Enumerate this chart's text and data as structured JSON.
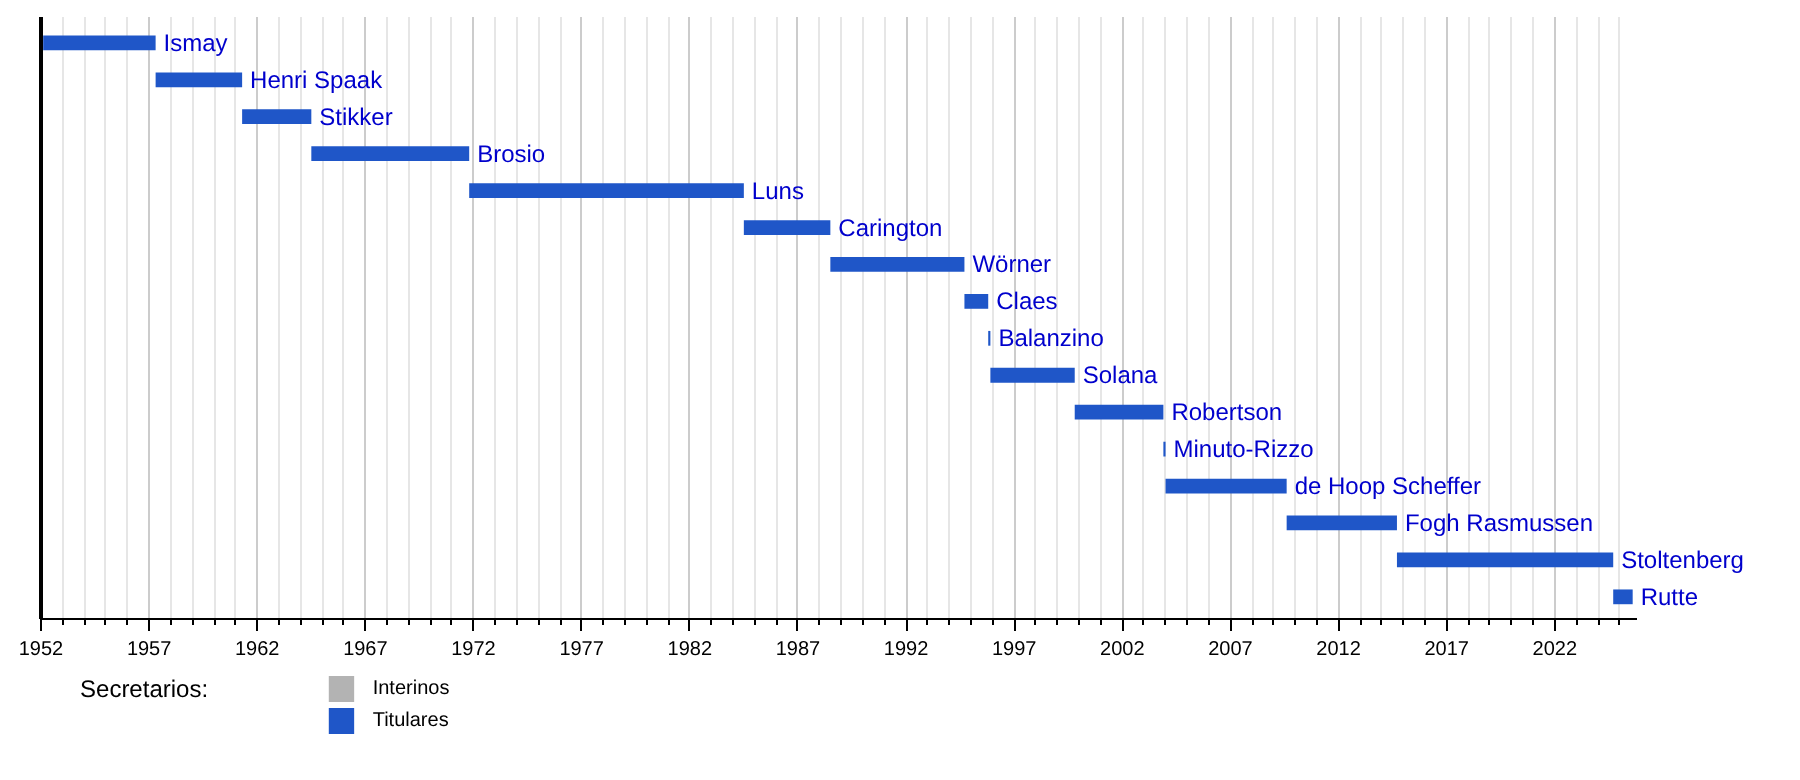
{
  "chart_data": {
    "type": "bar",
    "orientation": "horizontal",
    "categories": [
      "Ismay",
      "Henri Spaak",
      "Stikker",
      "Brosio",
      "Luns",
      "Carington",
      "Wörner",
      "Claes",
      "Balanzino",
      "Solana",
      "Robertson",
      "Minuto-Rizzo",
      "de Hoop Scheffer",
      "Fogh Rasmussen",
      "Stoltenberg",
      "Rutte"
    ],
    "series": [
      {
        "name": "Interinos",
        "color": "#b3b3b3",
        "values": [
          null,
          null,
          null,
          null,
          null,
          null,
          null,
          null,
          null,
          null,
          null,
          null,
          null,
          null,
          null,
          null
        ]
      },
      {
        "name": "Titulares",
        "color": "#1f56c8",
        "base": [
          1952.1,
          1957.3,
          1961.3,
          1964.5,
          1971.8,
          1984.5,
          1988.5,
          1994.7,
          1995.8,
          1995.9,
          1999.8,
          2003.9,
          2004.0,
          2009.6,
          2014.7,
          2024.7
        ],
        "values": [
          5.2,
          4.0,
          3.2,
          7.3,
          12.7,
          4.0,
          6.2,
          1.1,
          0.1,
          3.9,
          4.1,
          0.1,
          5.6,
          5.1,
          10.0,
          0.9
        ]
      }
    ],
    "xlim": [
      1952,
      2025.8
    ],
    "xticks": [
      1952,
      1957,
      1962,
      1967,
      1972,
      1977,
      1982,
      1987,
      1992,
      1997,
      2002,
      2007,
      2012,
      2017,
      2022
    ],
    "grid": "x",
    "legend": "bottom",
    "legend_title": "Secretarios:"
  }
}
